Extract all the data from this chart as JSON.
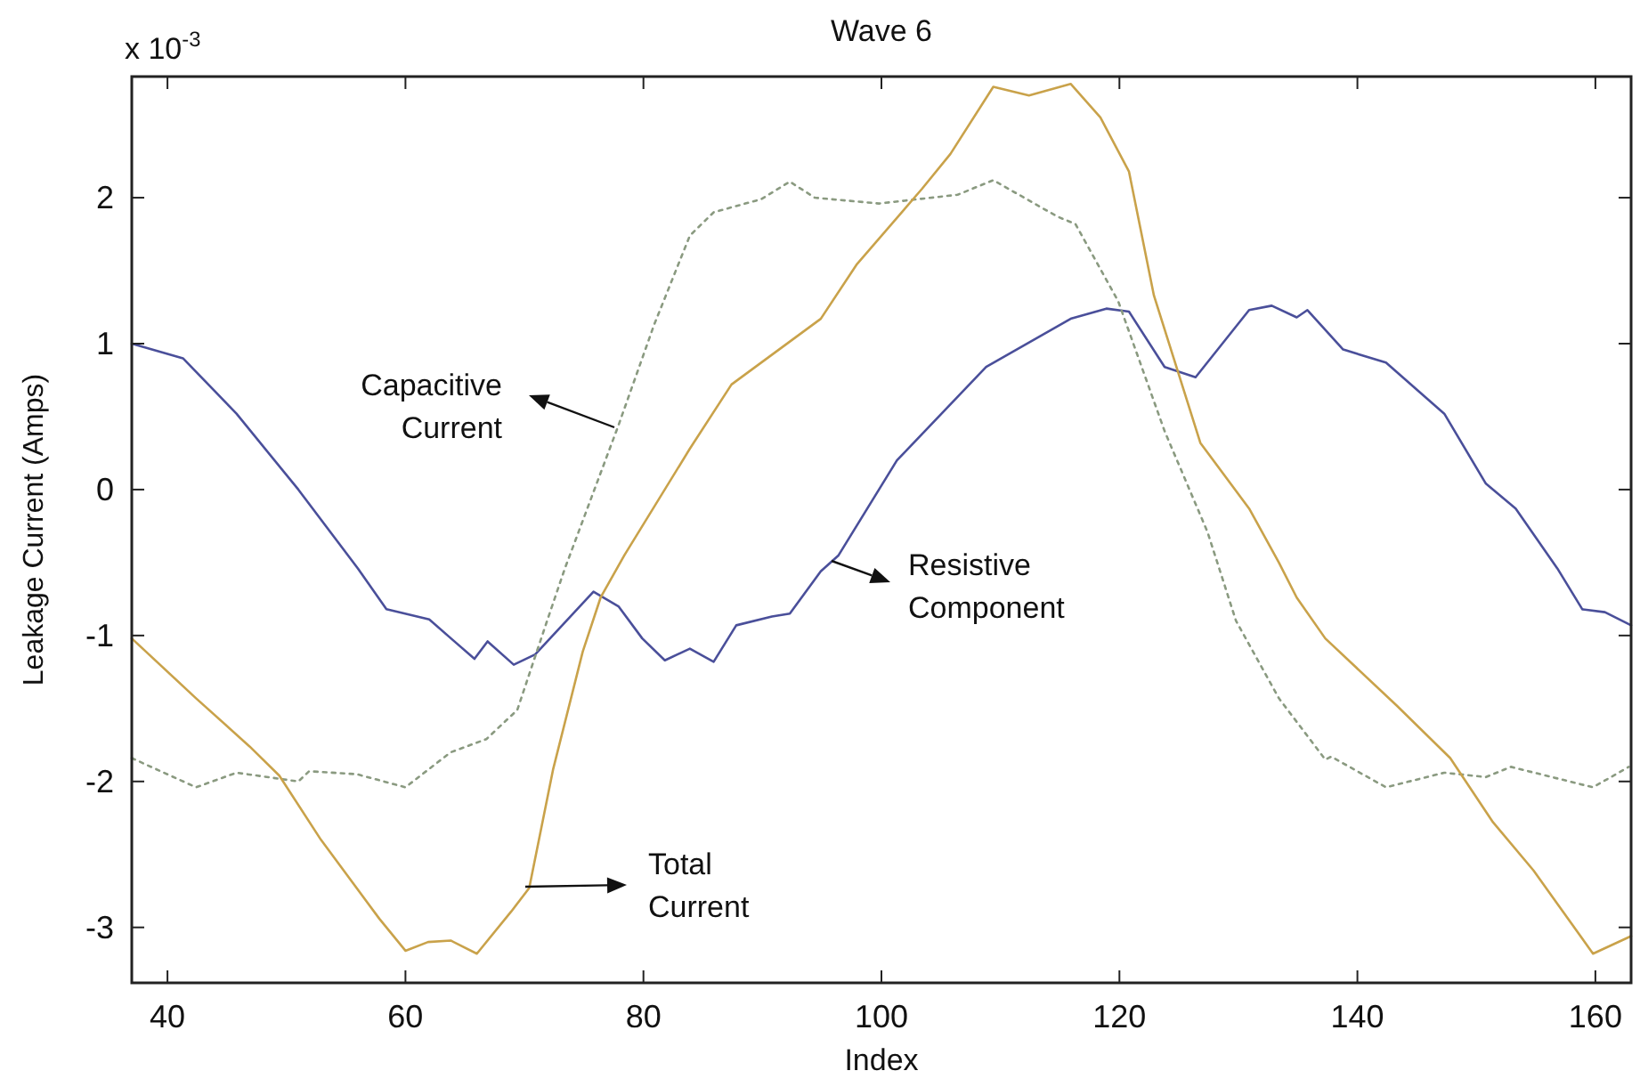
{
  "chart_data": {
    "type": "line",
    "title": "Wave 6",
    "xlabel": "Index",
    "ylabel": "Leakage Current (Amps)",
    "xlim": [
      37,
      163
    ],
    "xticks": [
      40,
      60,
      80,
      100,
      120,
      140,
      160
    ],
    "ylim": [
      -3.38,
      2.83
    ],
    "yticks": [
      -3,
      -2,
      -1,
      0,
      1,
      2
    ],
    "grid": false,
    "annotations": [
      "x 10$^{-3}$",
      "Capacitive\nCurrent",
      "Resistive\nComponent",
      "Total\nCurrent"
    ],
    "series": [
      {
        "color": "#4a4f9a",
        "line_style": "solid",
        "x": [
          37,
          41.3,
          45.8,
          51,
          56,
          58.4,
          62,
          65.8,
          66.9,
          69.1,
          70.9,
          75.8,
          77.9,
          79.9,
          81.8,
          83.9,
          85.9,
          87.8,
          90.8,
          92.3,
          94.9,
          96.4,
          101.3,
          108.8,
          115.9,
          118.9,
          120.8,
          123.8,
          126.4,
          130.9,
          132.8,
          134.9,
          135.8,
          138.8,
          142.4,
          147.3,
          150.8,
          153.3,
          156.8,
          158.9,
          160.8,
          163
        ],
        "values": [
          1.0,
          0.9,
          0.52,
          0,
          -0.54,
          -0.82,
          -0.89,
          -1.16,
          -1.04,
          -1.2,
          -1.13,
          -0.7,
          -0.8,
          -1.02,
          -1.17,
          -1.09,
          -1.18,
          -0.93,
          -0.87,
          -0.85,
          -0.56,
          -0.45,
          0.2,
          0.84,
          1.17,
          1.24,
          1.22,
          0.84,
          0.77,
          1.23,
          1.26,
          1.18,
          1.23,
          0.96,
          0.87,
          0.52,
          0.04,
          -0.13,
          -0.54,
          -0.82,
          -0.84,
          -0.93
        ]
      },
      {
        "color": "#8a9a80",
        "line_style": "dotted",
        "x": [
          37,
          42.4,
          45.8,
          51,
          51.9,
          55.9,
          60,
          63.8,
          66.8,
          69.4,
          71.9,
          73.4,
          77.9,
          80.9,
          83.9,
          85.9,
          89.9,
          92.3,
          94.4,
          99.8,
          106.4,
          109.4,
          114.8,
          116.3,
          119.9,
          123.8,
          127.4,
          129.8,
          133.4,
          137.3,
          137.8,
          142.4,
          147.3,
          150.8,
          152.9,
          159.8,
          162.8
        ],
        "values": [
          -1.84,
          -2.04,
          -1.94,
          -2.0,
          -1.93,
          -1.95,
          -2.04,
          -1.8,
          -1.71,
          -1.51,
          -0.9,
          -0.54,
          0.44,
          1.13,
          1.74,
          1.9,
          1.99,
          2.11,
          2.0,
          1.96,
          2.02,
          2.12,
          1.87,
          1.82,
          1.29,
          0.4,
          -0.29,
          -0.9,
          -1.43,
          -1.85,
          -1.83,
          -2.04,
          -1.94,
          -1.97,
          -1.9,
          -2.04,
          -1.9
        ]
      },
      {
        "color": "#c9a24a",
        "line_style": "solid",
        "x": [
          37,
          42.4,
          46.9,
          49.4,
          52.9,
          57.8,
          60,
          61.9,
          63.8,
          66,
          68.9,
          70.4,
          72.4,
          74.9,
          76.4,
          78.4,
          83.9,
          87.4,
          94.9,
          97.9,
          103.4,
          105.8,
          109.4,
          112.4,
          115.9,
          118.4,
          120.8,
          122.9,
          126.8,
          130.9,
          133.4,
          134.9,
          137.3,
          143.3,
          147.8,
          151.4,
          154.8,
          159.8,
          163
        ],
        "values": [
          -1.02,
          -1.43,
          -1.76,
          -1.96,
          -2.4,
          -2.94,
          -3.16,
          -3.1,
          -3.09,
          -3.18,
          -2.89,
          -2.73,
          -1.92,
          -1.11,
          -0.74,
          -0.45,
          0.28,
          0.72,
          1.17,
          1.54,
          2.06,
          2.3,
          2.76,
          2.7,
          2.78,
          2.55,
          2.18,
          1.33,
          0.32,
          -0.13,
          -0.5,
          -0.74,
          -1.02,
          -1.48,
          -1.84,
          -2.28,
          -2.61,
          -3.18,
          -3.06
        ]
      }
    ]
  }
}
